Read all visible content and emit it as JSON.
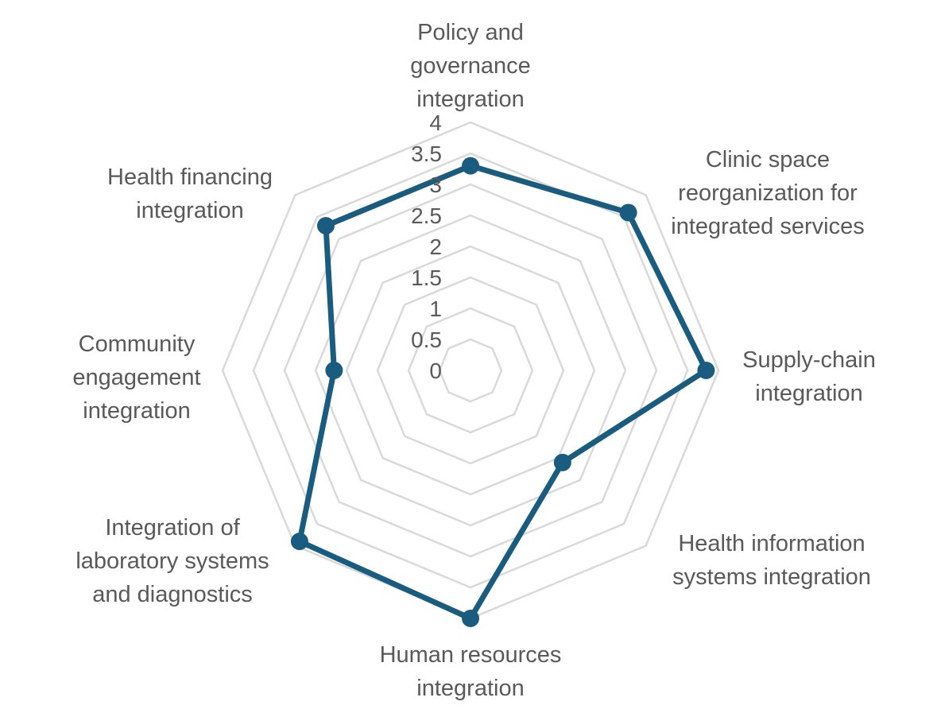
{
  "chart_data": {
    "type": "radar",
    "categories": [
      "Policy and governance integration",
      "Clinic space reorganization for integrated services",
      "Supply-chain integration",
      "Health information systems integration",
      "Human resources integration",
      "Integration of laboratory systems and diagnostics",
      "Community engagement integration",
      "Health financing integration"
    ],
    "category_label_lines": [
      [
        "Policy and",
        "governance",
        "integration"
      ],
      [
        "Clinic space",
        "reorganization for",
        "integrated services"
      ],
      [
        "Supply-chain",
        "integration"
      ],
      [
        "Health information",
        "systems integration"
      ],
      [
        "Human resources",
        "integration"
      ],
      [
        "Integration of",
        "laboratory systems",
        "and diagnostics"
      ],
      [
        "Community",
        "engagement",
        "integration"
      ],
      [
        "Health financing",
        "integration"
      ]
    ],
    "series": [
      {
        "values": [
          3.3,
          3.6,
          3.8,
          2.1,
          4.0,
          3.9,
          2.2,
          3.3
        ],
        "color": "#1a5c7f"
      }
    ],
    "radial_ticks": [
      "0",
      "0.5",
      "1",
      "1.5",
      "2",
      "2.5",
      "3",
      "3.5",
      "4"
    ],
    "rlim": [
      0,
      4
    ],
    "grid": true,
    "title": "",
    "legend": false
  }
}
